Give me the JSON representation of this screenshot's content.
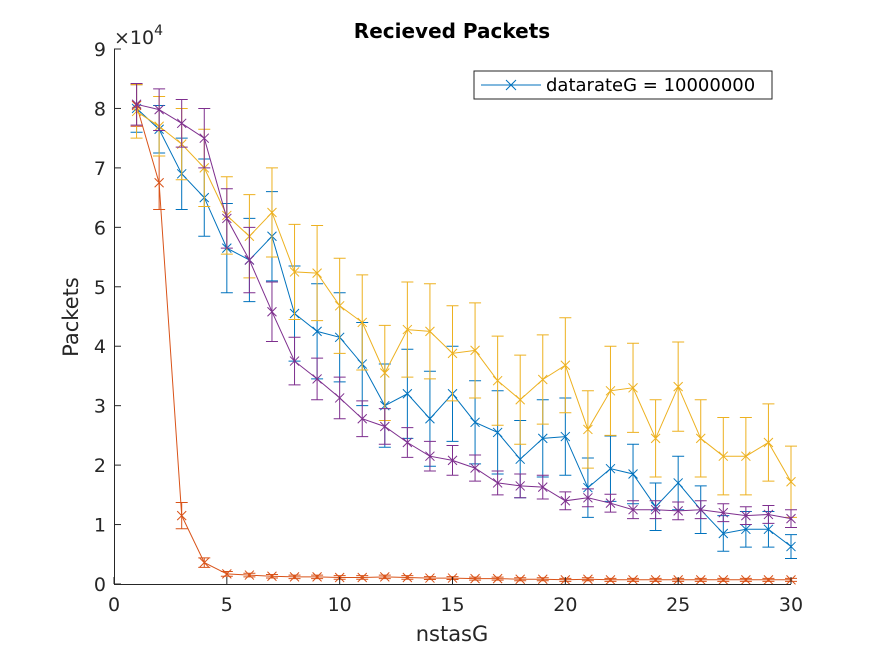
{
  "chart_data": {
    "type": "line",
    "title": "Recieved Packets",
    "xlabel": "nstasG",
    "ylabel": "Packets",
    "y_exponent_label": "×10",
    "y_exponent": "4",
    "xlim": [
      0,
      30
    ],
    "ylim": [
      0,
      90000
    ],
    "x_ticks": [
      0,
      5,
      10,
      15,
      20,
      25,
      30
    ],
    "y_ticks": [
      0,
      10000,
      20000,
      30000,
      40000,
      50000,
      60000,
      70000,
      80000,
      90000
    ],
    "y_tick_labels": [
      "0",
      "1",
      "2",
      "3",
      "4",
      "5",
      "6",
      "7",
      "8",
      "9"
    ],
    "grid": false,
    "legend_position": "top-right",
    "legend_entries": [
      "datarateG = 10000000"
    ],
    "x": [
      1,
      2,
      3,
      4,
      5,
      6,
      7,
      8,
      9,
      10,
      11,
      12,
      13,
      14,
      15,
      16,
      17,
      18,
      19,
      20,
      21,
      22,
      23,
      24,
      25,
      26,
      27,
      28,
      29,
      30
    ],
    "series": [
      {
        "name": "datarateG = 10000000",
        "color": "#0072BD",
        "values": [
          80000,
          76500,
          69000,
          65000,
          56500,
          54500,
          58500,
          45500,
          42500,
          41500,
          37000,
          30000,
          32000,
          27800,
          32000,
          27200,
          25500,
          21000,
          24500,
          24800,
          16200,
          19400,
          18500,
          13000,
          17000,
          12500,
          8500,
          9200,
          9200,
          6300
        ],
        "errors": [
          4000,
          4000,
          6000,
          6500,
          7500,
          7000,
          7500,
          8000,
          8000,
          7500,
          7000,
          7000,
          7500,
          8000,
          8000,
          7000,
          7000,
          6500,
          6500,
          6500,
          5000,
          5500,
          5000,
          4000,
          4500,
          4000,
          3000,
          3000,
          3000,
          2000
        ]
      },
      {
        "name": "",
        "color": "#D95319",
        "values": [
          80500,
          67500,
          11500,
          3600,
          1700,
          1500,
          1300,
          1200,
          1200,
          1100,
          1100,
          1200,
          1100,
          1000,
          1000,
          900,
          900,
          800,
          800,
          700,
          800,
          700,
          700,
          700,
          700,
          700,
          700,
          700,
          700,
          700
        ],
        "errors": [
          3500,
          4500,
          2200,
          800,
          400,
          300,
          300,
          300,
          300,
          300,
          300,
          300,
          300,
          250,
          250,
          250,
          250,
          250,
          250,
          250,
          250,
          250,
          250,
          250,
          250,
          250,
          250,
          250,
          250,
          250
        ]
      },
      {
        "name": "",
        "color": "#EDB120",
        "values": [
          79500,
          77000,
          74000,
          70000,
          62000,
          58500,
          62500,
          52500,
          52300,
          46800,
          44000,
          35500,
          42800,
          42500,
          38800,
          39300,
          34200,
          31000,
          34400,
          36800,
          26000,
          32500,
          33000,
          24500,
          33200,
          24500,
          21500,
          21500,
          23800,
          17200
        ],
        "errors": [
          4500,
          5000,
          6000,
          6500,
          6500,
          7000,
          7500,
          8000,
          8000,
          8000,
          8000,
          8000,
          8000,
          8000,
          8000,
          8000,
          7500,
          7500,
          7500,
          8000,
          6500,
          7500,
          7500,
          6500,
          7500,
          6500,
          6500,
          6500,
          6500,
          6000
        ]
      },
      {
        "name": "",
        "color": "#7E2F8E",
        "values": [
          80700,
          79800,
          77500,
          75000,
          61500,
          54500,
          45800,
          37500,
          34500,
          31300,
          27800,
          26500,
          23800,
          21500,
          20800,
          19500,
          17000,
          16500,
          16300,
          14000,
          14500,
          13600,
          12500,
          12500,
          12300,
          12500,
          12000,
          11500,
          11700,
          11000
        ],
        "errors": [
          3500,
          3500,
          4000,
          5000,
          5000,
          5500,
          5000,
          4000,
          3500,
          3500,
          3000,
          3000,
          2500,
          2500,
          2500,
          2200,
          2000,
          2000,
          2000,
          1500,
          1500,
          1500,
          1500,
          1500,
          1500,
          1500,
          1500,
          1500,
          1500,
          1500
        ]
      }
    ]
  }
}
